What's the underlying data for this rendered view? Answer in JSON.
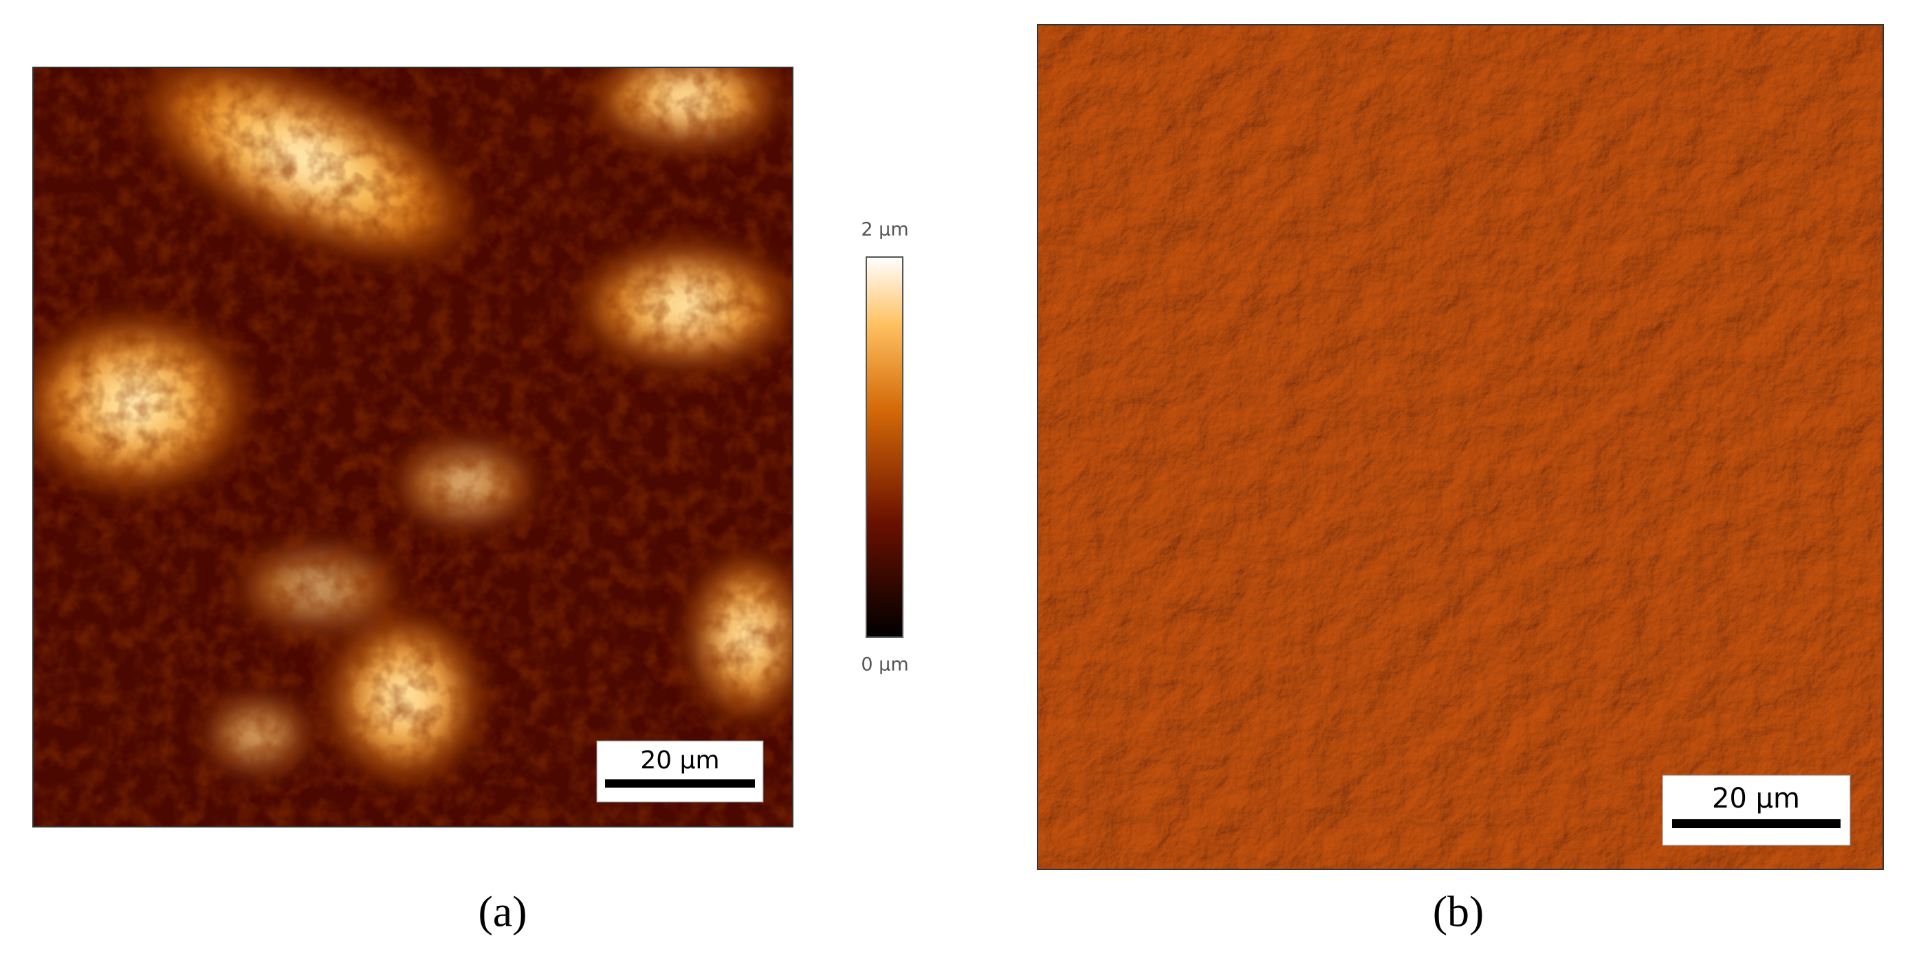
{
  "panel_a": {
    "colorbar": {
      "max_label": "2 µm",
      "min_label": "0 µm"
    },
    "scale_bar": "20 µm",
    "label": "(a)"
  },
  "panel_b": {
    "scale_bar": "20 µm",
    "label": "(b)"
  }
}
